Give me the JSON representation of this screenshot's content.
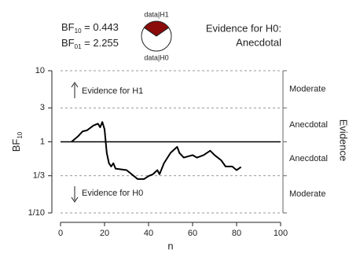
{
  "chart_data": {
    "type": "line",
    "bf_texts": [
      {
        "main": "BF",
        "sub": "10",
        "rest": " = 0.443"
      },
      {
        "main": "BF",
        "sub": "01",
        "rest": " = 2.255"
      }
    ],
    "pie": {
      "labels": [
        "data|H1",
        "data|H0"
      ],
      "values": [
        30.7,
        69.3
      ],
      "colors": [
        "#8b0a0a",
        "#ffffff"
      ]
    },
    "evidence_text": [
      "Evidence for H0:",
      "Anecdotal"
    ],
    "annotations": [
      "Evidence for H1",
      "Evidence for H0"
    ],
    "xlabel": "n",
    "ylabel": "BF",
    "ylabel_sub": "10",
    "y2label": "Evidence",
    "regions": [
      "Moderate",
      "Anecdotal",
      "Anecdotal",
      "Moderate"
    ],
    "log_y": true,
    "xlim": [
      0,
      100
    ],
    "xticks": [
      0,
      20,
      40,
      60,
      80,
      100
    ],
    "ylim": [
      0.1,
      10
    ],
    "yticks": [
      10,
      3,
      1,
      {
        "value": 0.3333,
        "label": "1/3"
      },
      {
        "value": 0.1,
        "label": "1/10"
      }
    ],
    "x": [
      5,
      8,
      10,
      12,
      15,
      17,
      18,
      19,
      20,
      21,
      22,
      23,
      24,
      25,
      30,
      35,
      38,
      40,
      42,
      44,
      45,
      47,
      50,
      53,
      54,
      56,
      60,
      62,
      65,
      68,
      70,
      73,
      75,
      78,
      80,
      82
    ],
    "series": [
      {
        "name": null,
        "color": "#000000",
        "values": [
          1.0,
          1.2,
          1.4,
          1.45,
          1.7,
          1.8,
          1.6,
          1.9,
          1.5,
          0.7,
          0.5,
          0.45,
          0.5,
          0.42,
          0.4,
          0.3,
          0.3,
          0.33,
          0.35,
          0.4,
          0.35,
          0.5,
          0.7,
          0.85,
          0.7,
          0.6,
          0.65,
          0.6,
          0.65,
          0.75,
          0.65,
          0.55,
          0.45,
          0.45,
          0.4,
          0.443
        ]
      }
    ]
  }
}
